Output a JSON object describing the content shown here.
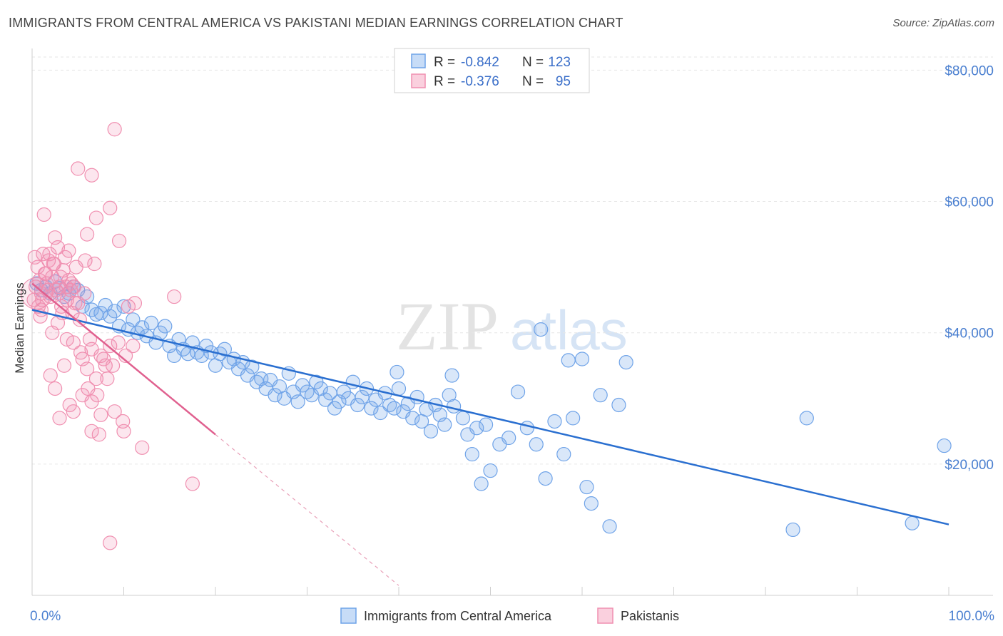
{
  "title": "IMMIGRANTS FROM CENTRAL AMERICA VS PAKISTANI MEDIAN EARNINGS CORRELATION CHART",
  "source": "Source: ZipAtlas.com",
  "watermark": {
    "zip": "ZIP",
    "atlas": "atlas"
  },
  "stats_box": {
    "rows": [
      {
        "r_label": "R =",
        "r_value": "-0.842",
        "n_label": "N =",
        "n_value": "123",
        "color": "#6fa3e8"
      },
      {
        "r_label": "R =",
        "r_value": "-0.376",
        "n_label": "N =",
        "n_value": "95",
        "color": "#f08fb0"
      }
    ]
  },
  "legend": {
    "items": [
      {
        "label": "Immigrants from Central America",
        "color": "#6fa3e8"
      },
      {
        "label": "Pakistanis",
        "color": "#f08fb0"
      }
    ]
  },
  "chart_data": {
    "type": "scatter",
    "xlabel": "",
    "ylabel": "Median Earnings",
    "xlim": [
      0,
      100
    ],
    "ylim": [
      0,
      82000
    ],
    "x_tick_labels": {
      "left": "0.0%",
      "right": "100.0%"
    },
    "y_ticks": [
      {
        "value": 20000,
        "label": "$20,000"
      },
      {
        "value": 40000,
        "label": "$40,000"
      },
      {
        "value": 60000,
        "label": "$60,000"
      },
      {
        "value": 80000,
        "label": "$80,000"
      }
    ],
    "grid": true,
    "series": [
      {
        "name": "Immigrants from Central America",
        "color": "#6fa3e8",
        "trend": {
          "x1": 0,
          "y1": 43500,
          "x2": 100,
          "y2": 10800,
          "color": "#2a6fd0"
        },
        "points": [
          [
            0.5,
            47500
          ],
          [
            1.0,
            46500
          ],
          [
            1.5,
            47000
          ],
          [
            2.0,
            46000
          ],
          [
            2.5,
            47800
          ],
          [
            3.0,
            46800
          ],
          [
            3.5,
            45500
          ],
          [
            4.0,
            46000
          ],
          [
            4.5,
            47000
          ],
          [
            5.0,
            46500
          ],
          [
            5.5,
            44000
          ],
          [
            6.0,
            45500
          ],
          [
            6.5,
            43500
          ],
          [
            7.0,
            42800
          ],
          [
            7.5,
            43000
          ],
          [
            8.0,
            44200
          ],
          [
            8.5,
            42500
          ],
          [
            9.0,
            43300
          ],
          [
            9.5,
            41000
          ],
          [
            10.0,
            44000
          ],
          [
            10.5,
            40500
          ],
          [
            11.0,
            42000
          ],
          [
            11.5,
            40000
          ],
          [
            12.0,
            40800
          ],
          [
            12.5,
            39500
          ],
          [
            13.0,
            41500
          ],
          [
            13.5,
            38500
          ],
          [
            14.0,
            40000
          ],
          [
            14.5,
            41000
          ],
          [
            15.0,
            38000
          ],
          [
            15.5,
            36500
          ],
          [
            16.0,
            39000
          ],
          [
            16.5,
            37500
          ],
          [
            17.0,
            36800
          ],
          [
            17.5,
            38500
          ],
          [
            18.0,
            37000
          ],
          [
            18.5,
            36500
          ],
          [
            19.0,
            38000
          ],
          [
            19.5,
            37000
          ],
          [
            20.0,
            35000
          ],
          [
            20.5,
            36800
          ],
          [
            21.0,
            37500
          ],
          [
            21.5,
            35500
          ],
          [
            22.0,
            36000
          ],
          [
            22.5,
            34500
          ],
          [
            23.0,
            35500
          ],
          [
            23.5,
            33500
          ],
          [
            24.0,
            34800
          ],
          [
            24.5,
            32500
          ],
          [
            25.0,
            33000
          ],
          [
            25.5,
            31500
          ],
          [
            26.0,
            32800
          ],
          [
            26.5,
            30500
          ],
          [
            27.0,
            31800
          ],
          [
            27.5,
            30000
          ],
          [
            28.0,
            33800
          ],
          [
            28.5,
            31000
          ],
          [
            29.0,
            29500
          ],
          [
            29.5,
            32000
          ],
          [
            30.0,
            31000
          ],
          [
            30.5,
            30500
          ],
          [
            31.0,
            32500
          ],
          [
            31.5,
            31500
          ],
          [
            32.0,
            29800
          ],
          [
            32.5,
            30800
          ],
          [
            33.0,
            28500
          ],
          [
            33.5,
            29500
          ],
          [
            34.0,
            31000
          ],
          [
            34.5,
            30000
          ],
          [
            35.0,
            32500
          ],
          [
            35.5,
            29000
          ],
          [
            36.0,
            30200
          ],
          [
            36.5,
            31500
          ],
          [
            37.0,
            28500
          ],
          [
            37.5,
            29800
          ],
          [
            38.0,
            27800
          ],
          [
            38.5,
            30800
          ],
          [
            39.0,
            29000
          ],
          [
            39.5,
            28500
          ],
          [
            40.0,
            31500
          ],
          [
            40.5,
            28000
          ],
          [
            41.0,
            29200
          ],
          [
            41.5,
            27000
          ],
          [
            42.0,
            30200
          ],
          [
            42.5,
            26500
          ],
          [
            43.0,
            28300
          ],
          [
            43.5,
            25000
          ],
          [
            44.0,
            29000
          ],
          [
            44.5,
            27500
          ],
          [
            45.0,
            26000
          ],
          [
            45.5,
            30500
          ],
          [
            46.0,
            28800
          ],
          [
            47.0,
            27000
          ],
          [
            47.5,
            24500
          ],
          [
            48.0,
            21500
          ],
          [
            48.5,
            25500
          ],
          [
            49.0,
            17000
          ],
          [
            49.5,
            26000
          ],
          [
            50.0,
            19000
          ],
          [
            51.0,
            23000
          ],
          [
            52.0,
            24000
          ],
          [
            53.0,
            31000
          ],
          [
            54.0,
            25500
          ],
          [
            55.0,
            23000
          ],
          [
            56.0,
            17800
          ],
          [
            57.0,
            26500
          ],
          [
            58.0,
            21500
          ],
          [
            59.0,
            27000
          ],
          [
            60.5,
            16500
          ],
          [
            61.0,
            14000
          ],
          [
            62.0,
            30500
          ],
          [
            63.0,
            10500
          ],
          [
            64.0,
            29000
          ],
          [
            55.5,
            40500
          ],
          [
            58.5,
            35800
          ],
          [
            60.0,
            36000
          ],
          [
            64.8,
            35500
          ],
          [
            83.0,
            10000
          ],
          [
            84.5,
            27000
          ],
          [
            96.0,
            11000
          ],
          [
            99.5,
            22800
          ],
          [
            39.8,
            34000
          ],
          [
            45.8,
            33500
          ]
        ]
      },
      {
        "name": "Pakistanis",
        "color": "#f08fb0",
        "trend": {
          "x1": 0,
          "y1": 47500,
          "x2": 20,
          "y2": 24500,
          "color": "#e0608f",
          "ext_x2": 40,
          "ext_y2": 1500
        },
        "points": [
          [
            0.2,
            45000
          ],
          [
            0.4,
            47000
          ],
          [
            0.6,
            50000
          ],
          [
            0.8,
            48000
          ],
          [
            1.0,
            46000
          ],
          [
            1.2,
            52000
          ],
          [
            1.4,
            49000
          ],
          [
            1.6,
            47500
          ],
          [
            1.8,
            51000
          ],
          [
            2.0,
            45500
          ],
          [
            2.2,
            48500
          ],
          [
            2.4,
            50500
          ],
          [
            2.6,
            46500
          ],
          [
            2.8,
            53000
          ],
          [
            3.0,
            47000
          ],
          [
            3.2,
            44000
          ],
          [
            3.4,
            49500
          ],
          [
            3.6,
            51500
          ],
          [
            3.8,
            45000
          ],
          [
            4.0,
            48000
          ],
          [
            4.2,
            46500
          ],
          [
            4.4,
            43000
          ],
          [
            4.6,
            47000
          ],
          [
            4.8,
            50000
          ],
          [
            5.0,
            44500
          ],
          [
            1.3,
            58000
          ],
          [
            2.5,
            54500
          ],
          [
            3.5,
            35000
          ],
          [
            4.5,
            38500
          ],
          [
            5.5,
            36000
          ],
          [
            6.0,
            34500
          ],
          [
            6.5,
            37500
          ],
          [
            7.0,
            33000
          ],
          [
            7.5,
            36500
          ],
          [
            8.0,
            35000
          ],
          [
            8.5,
            38000
          ],
          [
            2.0,
            33500
          ],
          [
            2.5,
            31500
          ],
          [
            3.0,
            27000
          ],
          [
            4.5,
            28000
          ],
          [
            5.5,
            30500
          ],
          [
            6.5,
            29500
          ],
          [
            7.5,
            27500
          ],
          [
            9.0,
            28000
          ],
          [
            10.0,
            25000
          ],
          [
            5.0,
            65000
          ],
          [
            6.0,
            55000
          ],
          [
            7.0,
            57500
          ],
          [
            8.5,
            59000
          ],
          [
            9.0,
            71000
          ],
          [
            6.5,
            64000
          ],
          [
            9.5,
            54000
          ],
          [
            4.0,
            52500
          ],
          [
            5.8,
            51000
          ],
          [
            6.8,
            50500
          ],
          [
            3.3,
            43000
          ],
          [
            2.8,
            41500
          ],
          [
            4.7,
            44500
          ],
          [
            10.5,
            44000
          ],
          [
            11.2,
            44500
          ],
          [
            12.0,
            22500
          ],
          [
            15.5,
            45500
          ],
          [
            17.5,
            17000
          ],
          [
            8.5,
            8000
          ],
          [
            6.5,
            25000
          ],
          [
            7.3,
            24500
          ],
          [
            5.2,
            42000
          ],
          [
            3.8,
            39000
          ],
          [
            2.2,
            40000
          ],
          [
            1.7,
            46500
          ],
          [
            0.9,
            42500
          ],
          [
            1.1,
            45000
          ],
          [
            0.7,
            44000
          ],
          [
            2.9,
            46000
          ],
          [
            3.1,
            48500
          ],
          [
            4.3,
            47500
          ],
          [
            5.7,
            46000
          ],
          [
            6.3,
            39000
          ],
          [
            7.8,
            36000
          ],
          [
            8.2,
            33000
          ],
          [
            9.4,
            38500
          ],
          [
            10.2,
            36500
          ],
          [
            11.0,
            38000
          ],
          [
            1.5,
            49000
          ],
          [
            2.3,
            50500
          ],
          [
            3.7,
            47000
          ],
          [
            1.9,
            52000
          ],
          [
            0.3,
            51500
          ],
          [
            5.3,
            37000
          ],
          [
            6.1,
            31500
          ],
          [
            7.1,
            30500
          ],
          [
            8.8,
            35000
          ],
          [
            9.9,
            26500
          ],
          [
            4.1,
            29000
          ],
          [
            1.0,
            43500
          ]
        ]
      }
    ]
  }
}
